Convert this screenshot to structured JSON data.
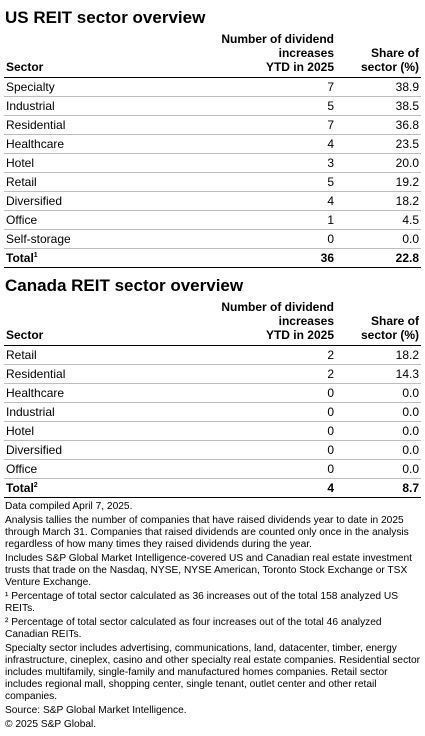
{
  "us": {
    "title": "US REIT sector overview",
    "headers": {
      "sector": "Sector",
      "increases": [
        "Number of dividend increases",
        "YTD in 2025"
      ],
      "share": [
        "Share of",
        "sector (%)"
      ]
    },
    "rows": [
      {
        "sector": "Specialty",
        "increases": "7",
        "share": "38.9"
      },
      {
        "sector": "Industrial",
        "increases": "5",
        "share": "38.5"
      },
      {
        "sector": "Residential",
        "increases": "7",
        "share": "36.8"
      },
      {
        "sector": "Healthcare",
        "increases": "4",
        "share": "23.5"
      },
      {
        "sector": "Hotel",
        "increases": "3",
        "share": "20.0"
      },
      {
        "sector": "Retail",
        "increases": "5",
        "share": "19.2"
      },
      {
        "sector": "Diversified",
        "increases": "4",
        "share": "18.2"
      },
      {
        "sector": "Office",
        "increases": "1",
        "share": "4.5"
      },
      {
        "sector": "Self-storage",
        "increases": "0",
        "share": "0.0"
      }
    ],
    "total": {
      "label": "Total",
      "mark": "1",
      "increases": "36",
      "share": "22.8"
    }
  },
  "canada": {
    "title": "Canada REIT sector overview",
    "headers": {
      "sector": "Sector",
      "increases": [
        "Number of dividend increases",
        "YTD in 2025"
      ],
      "share": [
        "Share of",
        "sector (%)"
      ]
    },
    "rows": [
      {
        "sector": "Retail",
        "increases": "2",
        "share": "18.2"
      },
      {
        "sector": "Residential",
        "increases": "2",
        "share": "14.3"
      },
      {
        "sector": "Healthcare",
        "increases": "0",
        "share": "0.0"
      },
      {
        "sector": "Industrial",
        "increases": "0",
        "share": "0.0"
      },
      {
        "sector": "Hotel",
        "increases": "0",
        "share": "0.0"
      },
      {
        "sector": "Diversified",
        "increases": "0",
        "share": "0.0"
      },
      {
        "sector": "Office",
        "increases": "0",
        "share": "0.0"
      }
    ],
    "total": {
      "label": "Total",
      "mark": "2",
      "increases": "4",
      "share": "8.7"
    }
  },
  "notes": [
    "Data compiled April 7, 2025.",
    "Analysis tallies the number of companies that have raised dividends year to date in 2025 through March 31. Companies that raised dividends are counted only once in the analysis regardless of how many times they raised dividends during the year.",
    "Includes S&P Global Market Intelligence-covered US and Canadian real estate investment trusts that trade on the Nasdaq, NYSE, NYSE American, Toronto Stock Exchange or TSX Venture Exchange.",
    "¹ Percentage of total sector calculated as 36 increases out of the total 158 analyzed US REITs.",
    "² Percentage of total sector calculated as four increases out of the total 46 analyzed Canadian REITs.",
    "Specialty sector includes advertising, communications, land, datacenter, timber, energy infrastructure, cineplex, casino and other specialty real estate companies. Residential sector includes multifamily, single-family and manufactured homes companies. Retail sector includes regional mall, shopping center, single tenant, outlet center and other retail companies.",
    "Source: S&P Global Market Intelligence.",
    "© 2025 S&P Global."
  ]
}
